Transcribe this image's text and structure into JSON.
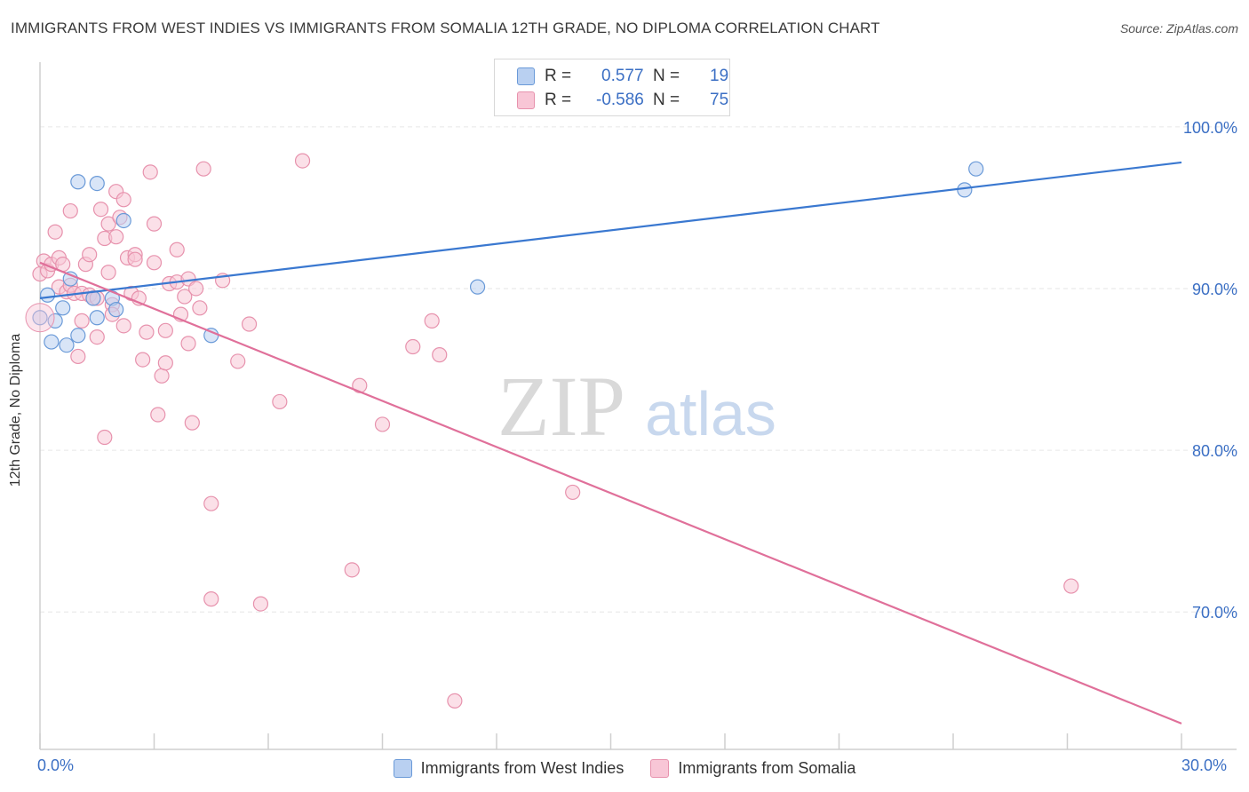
{
  "title": "IMMIGRANTS FROM WEST INDIES VS IMMIGRANTS FROM SOMALIA 12TH GRADE, NO DIPLOMA CORRELATION CHART",
  "source": "Source: ZipAtlas.com",
  "watermark": {
    "zip": "ZIP",
    "atlas": "atlas"
  },
  "colors": {
    "blue_fill": "#b9d0f1",
    "blue_stroke": "#6a9ad8",
    "blue_line": "#3a78d0",
    "pink_fill": "#f8c6d6",
    "pink_stroke": "#e792ad",
    "pink_line": "#e0709a",
    "axis_text": "#3b6fc4",
    "grid": "#e6e6e6"
  },
  "legend_top": {
    "rows": [
      {
        "r_label": "R =",
        "r_value": "0.577",
        "n_label": "N =",
        "n_value": "19"
      },
      {
        "r_label": "R =",
        "r_value": "-0.586",
        "n_label": "N =",
        "n_value": "75"
      }
    ]
  },
  "chart_data": {
    "type": "scatter",
    "title": "IMMIGRANTS FROM WEST INDIES VS IMMIGRANTS FROM SOMALIA 12TH GRADE, NO DIPLOMA CORRELATION CHART",
    "xlabel": "",
    "ylabel": "12th Grade, No Diploma",
    "xlim": [
      0,
      30
    ],
    "ylim": [
      61.5,
      104
    ],
    "x_tick_labels": [
      "0.0%",
      "30.0%"
    ],
    "y_ticks": [
      70,
      80,
      90,
      100
    ],
    "y_tick_labels": [
      "70.0%",
      "80.0%",
      "90.0%",
      "100.0%"
    ],
    "grid": true,
    "legend_placement": "bottom",
    "series": [
      {
        "name": "Immigrants from West Indies",
        "color": "#6a9ad8",
        "trend": {
          "x": [
            0,
            30
          ],
          "y": [
            89.4,
            97.8
          ]
        },
        "points": [
          [
            0.0,
            88.2
          ],
          [
            0.2,
            89.6
          ],
          [
            0.3,
            86.7
          ],
          [
            0.4,
            88.0
          ],
          [
            0.6,
            88.8
          ],
          [
            0.7,
            86.5
          ],
          [
            0.8,
            90.6
          ],
          [
            1.0,
            87.1
          ],
          [
            1.0,
            96.6
          ],
          [
            1.4,
            89.4
          ],
          [
            1.5,
            96.5
          ],
          [
            1.5,
            88.2
          ],
          [
            1.9,
            89.4
          ],
          [
            2.0,
            88.7
          ],
          [
            2.2,
            94.2
          ],
          [
            4.5,
            87.1
          ],
          [
            11.5,
            90.1
          ],
          [
            24.3,
            96.1
          ],
          [
            24.6,
            97.4
          ]
        ]
      },
      {
        "name": "Immigrants from Somalia",
        "color": "#e792ad",
        "trend": {
          "x": [
            0,
            30
          ],
          "y": [
            91.6,
            63.1
          ]
        },
        "points": [
          [
            0.0,
            90.9
          ],
          [
            0.1,
            91.7
          ],
          [
            0.2,
            91.1
          ],
          [
            0.3,
            91.5
          ],
          [
            0.4,
            93.5
          ],
          [
            0.5,
            91.9
          ],
          [
            0.5,
            90.1
          ],
          [
            0.6,
            91.5
          ],
          [
            0.7,
            89.8
          ],
          [
            0.8,
            90.2
          ],
          [
            0.8,
            94.8
          ],
          [
            0.9,
            89.7
          ],
          [
            1.0,
            85.8
          ],
          [
            1.1,
            88.0
          ],
          [
            1.1,
            89.7
          ],
          [
            1.2,
            91.5
          ],
          [
            1.3,
            89.6
          ],
          [
            1.3,
            92.1
          ],
          [
            1.4,
            89.4
          ],
          [
            1.5,
            87.0
          ],
          [
            1.5,
            89.4
          ],
          [
            1.6,
            94.9
          ],
          [
            1.7,
            93.1
          ],
          [
            1.7,
            80.8
          ],
          [
            1.8,
            94.0
          ],
          [
            1.8,
            91.0
          ],
          [
            1.9,
            89.0
          ],
          [
            1.9,
            88.4
          ],
          [
            2.0,
            96.0
          ],
          [
            2.0,
            93.2
          ],
          [
            2.1,
            94.4
          ],
          [
            2.2,
            87.7
          ],
          [
            2.2,
            95.5
          ],
          [
            2.3,
            91.9
          ],
          [
            2.4,
            89.7
          ],
          [
            2.5,
            92.1
          ],
          [
            2.5,
            91.8
          ],
          [
            2.6,
            89.4
          ],
          [
            2.7,
            85.6
          ],
          [
            2.8,
            87.3
          ],
          [
            2.9,
            97.2
          ],
          [
            3.0,
            94.0
          ],
          [
            3.0,
            91.6
          ],
          [
            3.1,
            82.2
          ],
          [
            3.2,
            84.6
          ],
          [
            3.3,
            85.4
          ],
          [
            3.3,
            87.4
          ],
          [
            3.4,
            90.3
          ],
          [
            3.6,
            92.4
          ],
          [
            3.6,
            90.4
          ],
          [
            3.7,
            88.4
          ],
          [
            3.8,
            89.5
          ],
          [
            3.9,
            86.6
          ],
          [
            3.9,
            90.6
          ],
          [
            4.0,
            81.7
          ],
          [
            4.1,
            90.0
          ],
          [
            4.2,
            88.8
          ],
          [
            4.3,
            97.4
          ],
          [
            4.5,
            76.7
          ],
          [
            4.5,
            70.8
          ],
          [
            4.8,
            90.5
          ],
          [
            5.2,
            85.5
          ],
          [
            5.5,
            87.8
          ],
          [
            5.8,
            70.5
          ],
          [
            6.3,
            83.0
          ],
          [
            6.9,
            97.9
          ],
          [
            8.2,
            72.6
          ],
          [
            8.4,
            84.0
          ],
          [
            9.0,
            81.6
          ],
          [
            9.8,
            86.4
          ],
          [
            10.3,
            88.0
          ],
          [
            10.5,
            85.9
          ],
          [
            10.9,
            64.5
          ],
          [
            14.0,
            77.4
          ],
          [
            27.1,
            71.6
          ]
        ]
      }
    ]
  },
  "legend_bottom": {
    "items": [
      {
        "label": "Immigrants from West Indies"
      },
      {
        "label": "Immigrants from Somalia"
      }
    ]
  }
}
